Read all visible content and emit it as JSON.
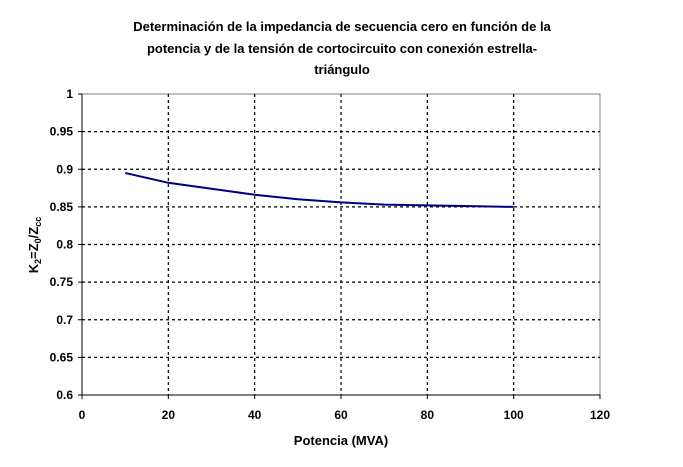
{
  "chart_data": {
    "type": "line",
    "title_lines": [
      "Determinación de la impedancia de secuencia cero en función de la",
      "potencia y de la tensión de cortocircuito con conexión estrella-",
      "triángulo"
    ],
    "xlabel": "Potencia (MVA)",
    "ylabel": {
      "prefix": "K",
      "prefix_sub": "2",
      "middle": "=Z",
      "middle_sub": "0",
      "suffix": "/Z",
      "suffix_sub": "cc"
    },
    "xlim": [
      0,
      120
    ],
    "ylim": [
      0.6,
      1
    ],
    "x_ticks": [
      "0",
      "20",
      "40",
      "60",
      "80",
      "100",
      "120"
    ],
    "y_ticks": [
      "0.6",
      "0.65",
      "0.7",
      "0.75",
      "0.8",
      "0.85",
      "0.9",
      "0.95",
      "1"
    ],
    "grid": true,
    "line_color": "#000080",
    "series": [
      {
        "x": [
          10,
          20,
          30,
          40,
          50,
          60,
          70,
          80,
          90,
          100
        ],
        "y": [
          0.895,
          0.882,
          0.874,
          0.866,
          0.86,
          0.856,
          0.853,
          0.852,
          0.851,
          0.85
        ]
      }
    ]
  }
}
